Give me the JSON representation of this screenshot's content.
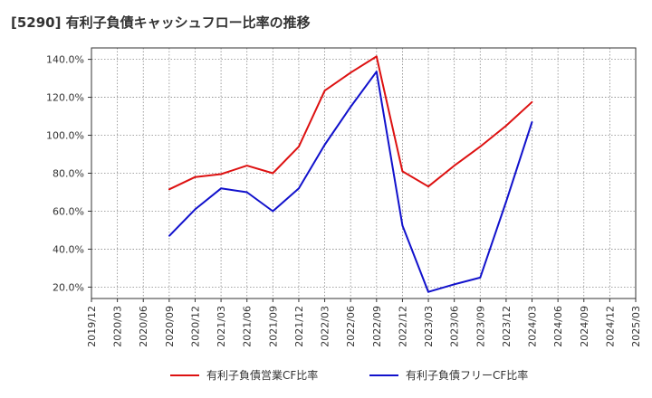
{
  "chart_data": {
    "type": "line",
    "title": "[5290]  有利子負債キャッシュフロー比率の推移",
    "xlabel": "",
    "ylabel": "",
    "x": [
      "2019/12",
      "2020/03",
      "2020/06",
      "2020/09",
      "2020/12",
      "2021/03",
      "2021/06",
      "2021/09",
      "2021/12",
      "2022/03",
      "2022/06",
      "2022/09",
      "2022/12",
      "2023/03",
      "2023/06",
      "2023/09",
      "2023/12",
      "2024/03",
      "2024/06",
      "2024/09",
      "2024/12",
      "2025/03"
    ],
    "ylim": [
      14.0,
      146.0
    ],
    "yticks": [
      20.0,
      40.0,
      60.0,
      80.0,
      100.0,
      120.0,
      140.0
    ],
    "ytick_labels": [
      "20.0%",
      "40.0%",
      "60.0%",
      "80.0%",
      "100.0%",
      "120.0%",
      "140.0%"
    ],
    "grid": true,
    "legend_position": "bottom",
    "series": [
      {
        "name": "有利子負債営業CF比率",
        "color": "#dd1111",
        "values": [
          null,
          null,
          null,
          71.5,
          78.0,
          79.5,
          84.0,
          80.0,
          94.0,
          123.5,
          133.0,
          141.5,
          81.0,
          73.0,
          84.0,
          94.0,
          105.0,
          117.5,
          null,
          null,
          null,
          null
        ]
      },
      {
        "name": "有利子負債フリーCF比率",
        "color": "#1111cc",
        "values": [
          null,
          null,
          null,
          47.0,
          61.0,
          72.0,
          70.0,
          60.0,
          72.0,
          95.0,
          115.0,
          133.5,
          52.5,
          17.5,
          21.5,
          25.0,
          65.0,
          107.0,
          null,
          null,
          null,
          null
        ]
      }
    ]
  }
}
